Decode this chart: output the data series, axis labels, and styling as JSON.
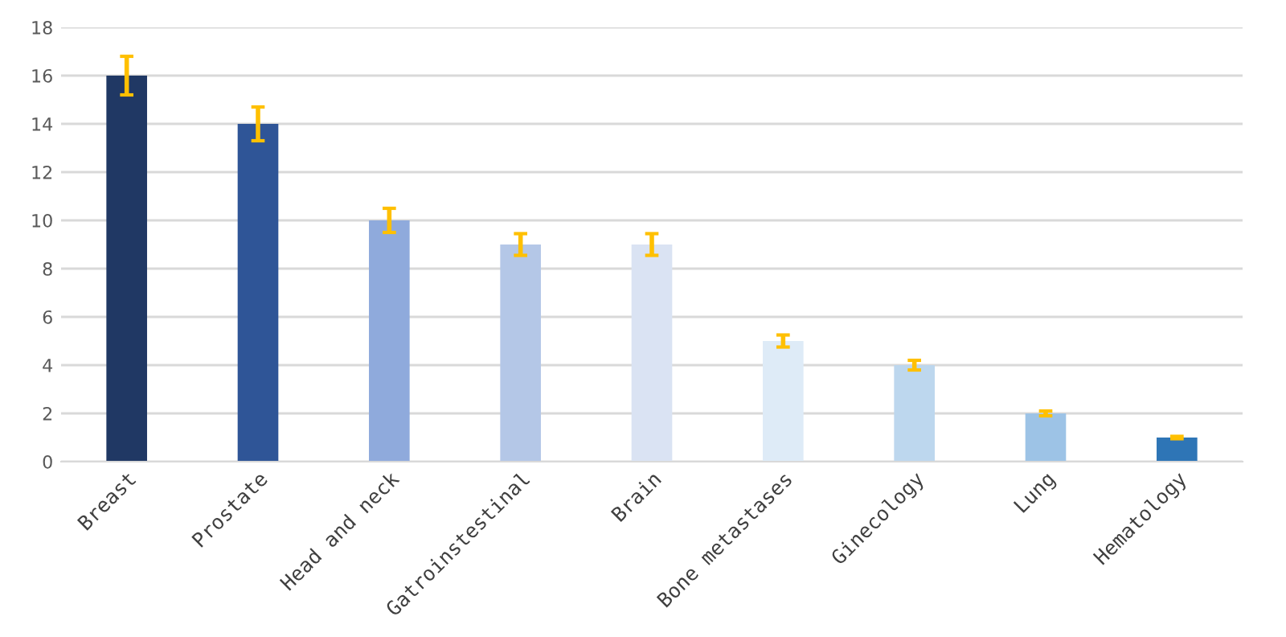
{
  "chart_data": {
    "type": "bar",
    "categories": [
      "Breast",
      "Prostate",
      "Head and neck",
      "Gatroinstestinal",
      "Brain",
      "Bone metastases",
      "Ginecology",
      "Lung",
      "Hematology"
    ],
    "values": [
      16,
      14,
      10,
      9,
      9,
      5,
      4,
      2,
      1
    ],
    "colors": [
      "#203864",
      "#2f5597",
      "#8faadc",
      "#b4c7e7",
      "#dae3f3",
      "#deebf7",
      "#bdd7ee",
      "#9dc3e6",
      "#2e75b6"
    ],
    "errors": [
      0.8,
      0.7,
      0.5,
      0.45,
      0.45,
      0.25,
      0.2,
      0.1,
      0.05
    ],
    "ylim": [
      0,
      18
    ],
    "yticks": [
      0,
      2,
      4,
      6,
      8,
      10,
      12,
      14,
      16,
      18
    ],
    "grid": "y"
  }
}
